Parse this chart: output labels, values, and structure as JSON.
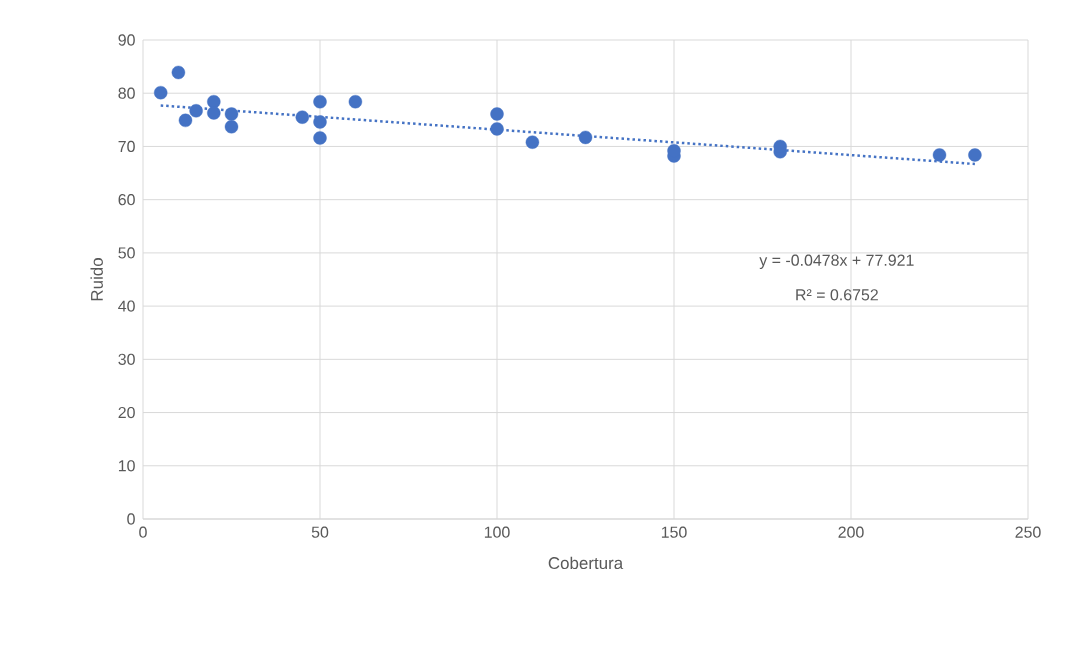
{
  "chart_data": {
    "type": "scatter",
    "xlabel": "Cobertura",
    "ylabel": "Ruido",
    "xlim": [
      0,
      250
    ],
    "xticks": [
      0,
      50,
      100,
      150,
      200,
      250
    ],
    "ylim": [
      0,
      90
    ],
    "yticks": [
      0,
      10,
      20,
      30,
      40,
      50,
      60,
      70,
      80,
      90
    ],
    "grid": true,
    "series": [
      {
        "color": "#4472c4",
        "marker": "circle",
        "x": [
          5,
          10,
          12,
          15,
          20,
          20,
          25,
          25,
          45,
          50,
          50,
          50,
          60,
          100,
          100,
          110,
          125,
          150,
          150,
          180,
          180,
          225,
          235
        ],
        "values": [
          80.1,
          83.9,
          74.9,
          76.7,
          78.4,
          76.3,
          76.1,
          73.7,
          75.5,
          78.4,
          74.6,
          71.6,
          78.4,
          76.1,
          73.3,
          70.8,
          71.7,
          68.2,
          69.2,
          69.0,
          70.0,
          68.4,
          68.4
        ]
      },
      {
        "type": "line",
        "color": "#4472c4",
        "line_style": "dotted",
        "marker": "none",
        "x": [
          5,
          235
        ],
        "values": [
          77.7,
          66.7
        ]
      }
    ],
    "annotations": [
      "y = -0.0478x + 77.921",
      "R² = 0.6752"
    ]
  }
}
